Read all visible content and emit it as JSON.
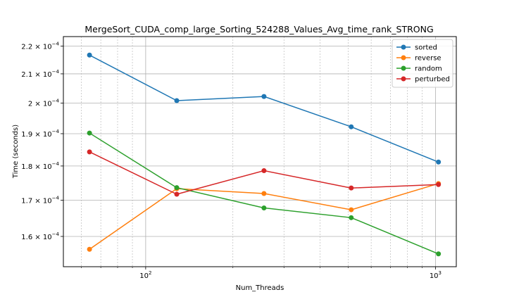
{
  "chart_data": {
    "type": "line",
    "title": "MergeSort_CUDA_comp_large_Sorting_524288_Values_Avg_time_rank_STRONG",
    "xlabel": "Num_Threads",
    "ylabel": "Time (seconds)",
    "xscale": "log",
    "yscale": "log",
    "x": [
      64,
      128,
      256,
      512,
      1024
    ],
    "xlim": [
      52,
      1180
    ],
    "ylim": [
      0.0001521,
      0.0002235
    ],
    "x_ticks": [
      {
        "value": 100,
        "label": "10",
        "exp": "2"
      },
      {
        "value": 1000,
        "label": "10",
        "exp": "3"
      }
    ],
    "y_ticks": [
      {
        "value": 0.00016,
        "label": "1.6 × 10",
        "exp": "−4"
      },
      {
        "value": 0.00017,
        "label": "1.7 × 10",
        "exp": "−4"
      },
      {
        "value": 0.00018,
        "label": "1.8 × 10",
        "exp": "−4"
      },
      {
        "value": 0.00019,
        "label": "1.9 × 10",
        "exp": "−4"
      },
      {
        "value": 0.0002,
        "label": "2 × 10",
        "exp": "−4"
      },
      {
        "value": 0.00021,
        "label": "2.1 × 10",
        "exp": "−4"
      },
      {
        "value": 0.00022,
        "label": "2.2 × 10",
        "exp": "−4"
      }
    ],
    "grid": true,
    "legend_position": "top-right",
    "series": [
      {
        "name": "sorted",
        "color": "#1f77b4",
        "values": [
          0.0002167,
          0.0002008,
          0.0002022,
          0.0001922,
          0.0001812
        ]
      },
      {
        "name": "reverse",
        "color": "#ff7f0e",
        "values": [
          0.0001566,
          0.0001733,
          0.0001719,
          0.0001673,
          0.0001748
        ]
      },
      {
        "name": "random",
        "color": "#2ca02c",
        "values": [
          0.0001902,
          0.0001736,
          0.0001678,
          0.0001651,
          0.0001554
        ]
      },
      {
        "name": "perturbed",
        "color": "#d62728",
        "values": [
          0.0001843,
          0.0001717,
          0.0001786,
          0.0001735,
          0.0001745
        ]
      }
    ]
  }
}
